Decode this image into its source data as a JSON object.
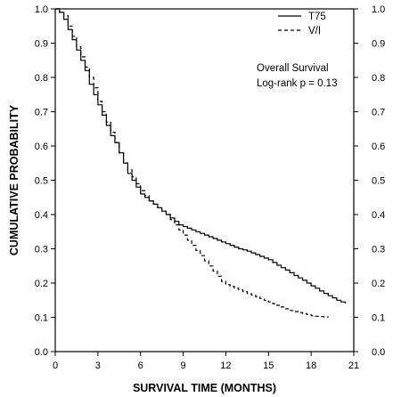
{
  "chart_data": {
    "type": "line",
    "title": "",
    "xlabel": "SURVIVAL TIME (MONTHS)",
    "ylabel": "CUMULATIVE PROBABILITY",
    "xlim": [
      0,
      21
    ],
    "ylim": [
      0,
      1
    ],
    "x_ticks": [
      0,
      3,
      6,
      9,
      12,
      15,
      18,
      21
    ],
    "y_ticks": [
      0.0,
      0.1,
      0.2,
      0.3,
      0.4,
      0.5,
      0.6,
      0.7,
      0.8,
      0.9,
      1.0
    ],
    "x_tick_labels": [
      "0",
      "3",
      "6",
      "9",
      "12",
      "15",
      "18",
      "21"
    ],
    "y_tick_labels": [
      "0.0",
      "0.1",
      "0.2",
      "0.3",
      "0.4",
      "0.5",
      "0.6",
      "0.7",
      "0.8",
      "0.9",
      "1.0"
    ],
    "grid": false,
    "legend_position": "top-right",
    "annotations": [
      "Overall Survival",
      "Log-rank  p = 0.13"
    ],
    "series": [
      {
        "name": "T75",
        "style": "solid",
        "color": "#000000",
        "x": [
          0,
          0.3,
          0.6,
          0.9,
          1.2,
          1.5,
          1.8,
          2.1,
          2.4,
          2.7,
          3.0,
          3.3,
          3.6,
          3.9,
          4.2,
          4.5,
          4.8,
          5.1,
          5.4,
          5.7,
          6.0,
          6.3,
          6.6,
          6.9,
          7.2,
          7.5,
          7.8,
          8.1,
          8.4,
          8.7,
          9.0,
          9.3,
          9.6,
          9.9,
          10.2,
          10.5,
          10.8,
          11.1,
          11.4,
          11.7,
          12.0,
          12.3,
          12.6,
          12.9,
          13.2,
          13.5,
          13.8,
          14.1,
          14.4,
          14.7,
          15.0,
          15.3,
          15.6,
          15.9,
          16.2,
          16.5,
          16.8,
          17.1,
          17.4,
          17.7,
          18.0,
          18.3,
          18.6,
          18.9,
          19.2,
          19.5,
          19.8,
          20.1,
          20.4
        ],
        "y": [
          1.0,
          0.99,
          0.97,
          0.94,
          0.91,
          0.88,
          0.85,
          0.82,
          0.78,
          0.75,
          0.72,
          0.69,
          0.66,
          0.63,
          0.61,
          0.58,
          0.55,
          0.52,
          0.5,
          0.48,
          0.46,
          0.45,
          0.44,
          0.43,
          0.42,
          0.41,
          0.4,
          0.39,
          0.38,
          0.37,
          0.365,
          0.36,
          0.355,
          0.35,
          0.345,
          0.34,
          0.335,
          0.33,
          0.325,
          0.32,
          0.315,
          0.31,
          0.305,
          0.3,
          0.297,
          0.293,
          0.288,
          0.283,
          0.278,
          0.273,
          0.268,
          0.26,
          0.252,
          0.245,
          0.238,
          0.23,
          0.222,
          0.215,
          0.208,
          0.2,
          0.192,
          0.185,
          0.177,
          0.17,
          0.163,
          0.157,
          0.15,
          0.145,
          0.14
        ]
      },
      {
        "name": "V/I",
        "style": "dashed",
        "color": "#000000",
        "x": [
          0,
          0.3,
          0.6,
          0.9,
          1.2,
          1.5,
          1.8,
          2.1,
          2.4,
          2.7,
          3.0,
          3.3,
          3.6,
          3.9,
          4.2,
          4.5,
          4.8,
          5.1,
          5.4,
          5.7,
          6.0,
          6.3,
          6.6,
          6.9,
          7.2,
          7.5,
          7.8,
          8.1,
          8.4,
          8.7,
          9.0,
          9.3,
          9.6,
          9.9,
          10.2,
          10.5,
          10.8,
          11.1,
          11.4,
          11.7,
          12.0,
          12.3,
          12.6,
          12.9,
          13.2,
          13.5,
          13.8,
          14.1,
          14.4,
          14.7,
          15.0,
          15.3,
          15.6,
          15.9,
          16.2,
          16.5,
          16.8,
          17.1,
          17.4,
          17.7,
          18.0,
          18.3,
          18.6,
          18.9,
          19.2
        ],
        "y": [
          1.0,
          0.99,
          0.98,
          0.95,
          0.92,
          0.89,
          0.86,
          0.83,
          0.8,
          0.77,
          0.73,
          0.7,
          0.67,
          0.64,
          0.61,
          0.58,
          0.55,
          0.53,
          0.51,
          0.49,
          0.47,
          0.455,
          0.44,
          0.43,
          0.42,
          0.41,
          0.4,
          0.385,
          0.37,
          0.355,
          0.34,
          0.325,
          0.31,
          0.295,
          0.28,
          0.265,
          0.25,
          0.235,
          0.22,
          0.205,
          0.195,
          0.19,
          0.185,
          0.18,
          0.175,
          0.17,
          0.165,
          0.16,
          0.155,
          0.15,
          0.145,
          0.14,
          0.135,
          0.13,
          0.125,
          0.12,
          0.117,
          0.114,
          0.111,
          0.108,
          0.105,
          0.103,
          0.102,
          0.101,
          0.1
        ]
      }
    ]
  }
}
